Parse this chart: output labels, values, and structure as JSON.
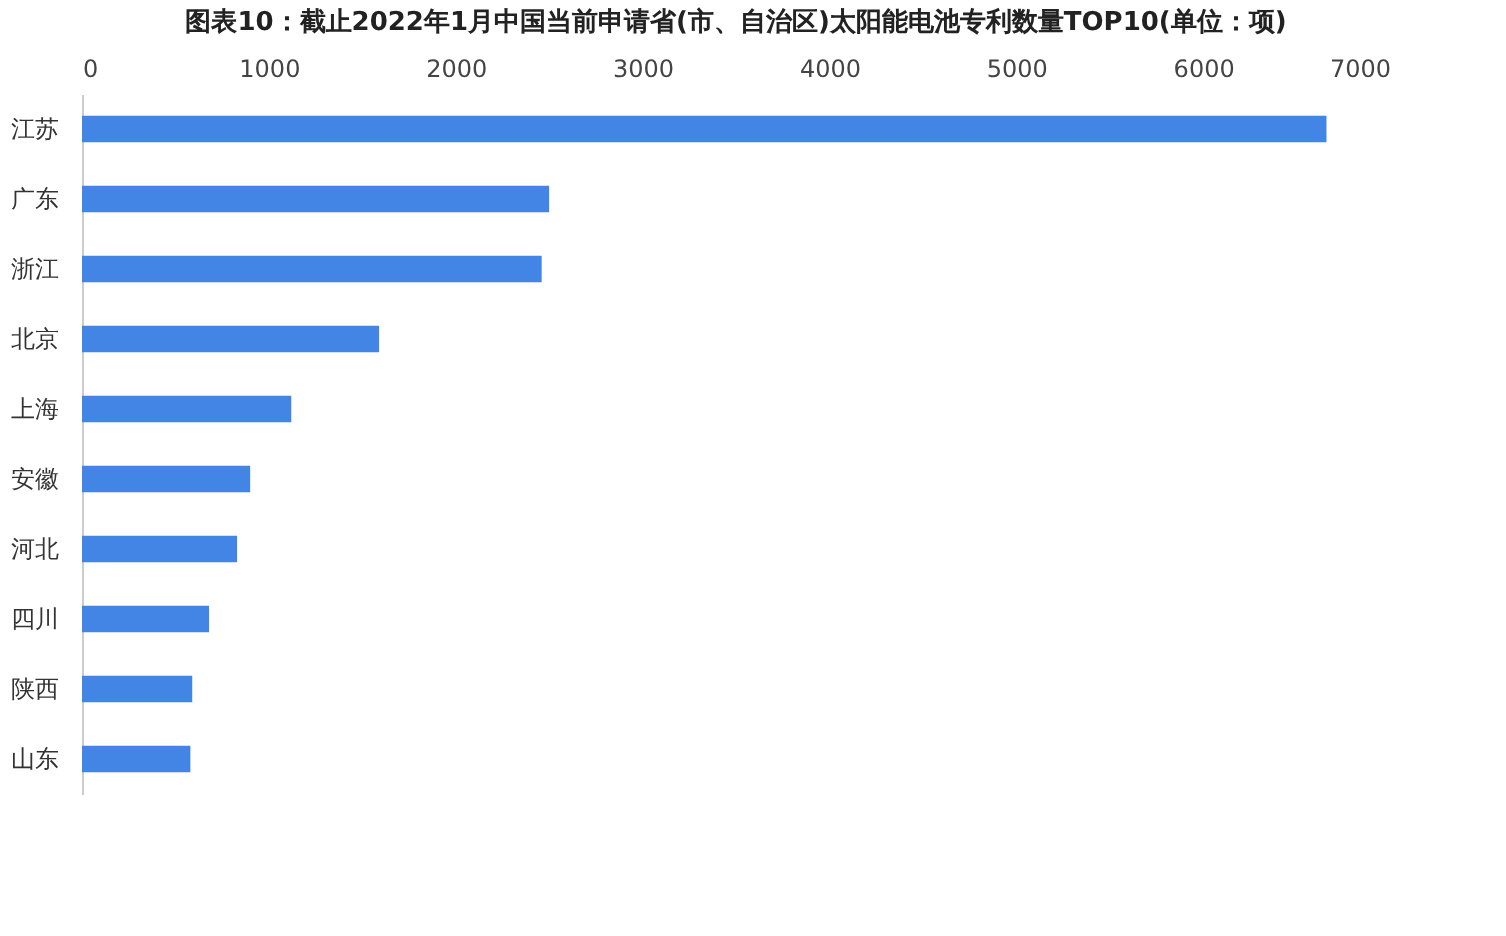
{
  "chart_data": {
    "type": "bar",
    "orientation": "horizontal",
    "title": "图表10：截止2022年1月中国当前申请省(市、自治区)太阳能电池专利数量TOP10(单位：项)",
    "categories": [
      "江苏",
      "广东",
      "浙江",
      "北京",
      "上海",
      "安徽",
      "河北",
      "四川",
      "陕西",
      "山东"
    ],
    "values": [
      6660,
      2500,
      2460,
      1590,
      1120,
      900,
      830,
      680,
      590,
      580
    ],
    "color": "#4285e4",
    "xlim": [
      0,
      7000
    ],
    "xticks": [
      0,
      1000,
      2000,
      3000,
      4000,
      5000,
      6000,
      7000
    ],
    "grid": false
  }
}
